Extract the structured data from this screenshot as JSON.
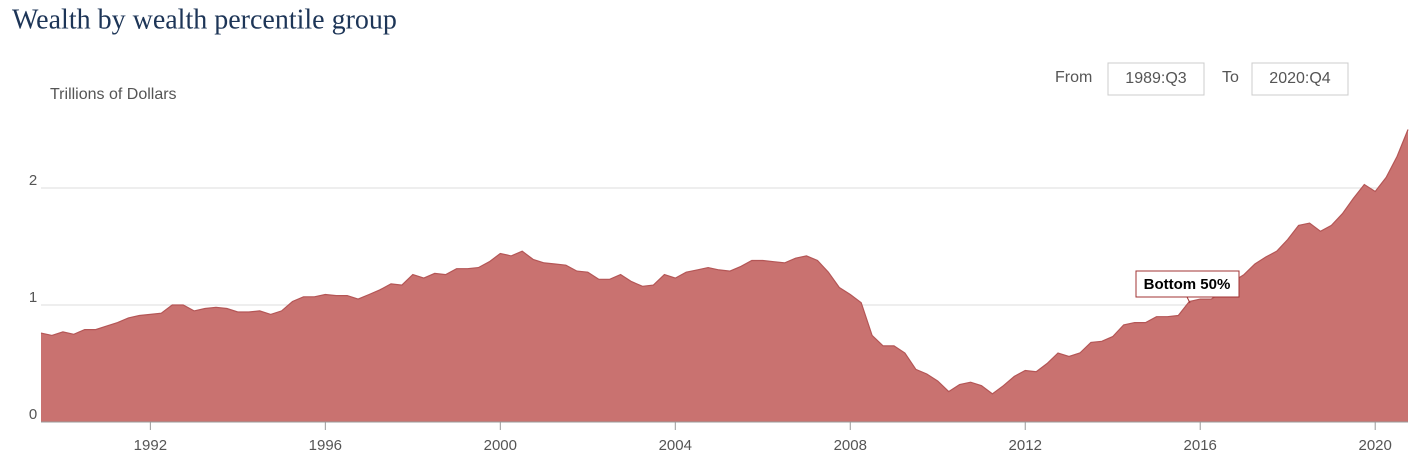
{
  "chart_data": {
    "type": "area",
    "title": "Wealth by wealth percentile group",
    "y_axis_label": "Trillions of Dollars",
    "x": [
      1989.5,
      1989.75,
      1990,
      1990.25,
      1990.5,
      1990.75,
      1991,
      1991.25,
      1991.5,
      1991.75,
      1992,
      1992.25,
      1992.5,
      1992.75,
      1993,
      1993.25,
      1993.5,
      1993.75,
      1994,
      1994.25,
      1994.5,
      1994.75,
      1995,
      1995.25,
      1995.5,
      1995.75,
      1996,
      1996.25,
      1996.5,
      1996.75,
      1997,
      1997.25,
      1997.5,
      1997.75,
      1998,
      1998.25,
      1998.5,
      1998.75,
      1999,
      1999.25,
      1999.5,
      1999.75,
      2000,
      2000.25,
      2000.5,
      2000.75,
      2001,
      2001.25,
      2001.5,
      2001.75,
      2002,
      2002.25,
      2002.5,
      2002.75,
      2003,
      2003.25,
      2003.5,
      2003.75,
      2004,
      2004.25,
      2004.5,
      2004.75,
      2005,
      2005.25,
      2005.5,
      2005.75,
      2006,
      2006.25,
      2006.5,
      2006.75,
      2007,
      2007.25,
      2007.5,
      2007.75,
      2008,
      2008.25,
      2008.5,
      2008.75,
      2009,
      2009.25,
      2009.5,
      2009.75,
      2010,
      2010.25,
      2010.5,
      2010.75,
      2011,
      2011.25,
      2011.5,
      2011.75,
      2012,
      2012.25,
      2012.5,
      2012.75,
      2013,
      2013.25,
      2013.5,
      2013.75,
      2014,
      2014.25,
      2014.5,
      2014.75,
      2015,
      2015.25,
      2015.5,
      2015.75,
      2016,
      2016.25,
      2016.5,
      2016.75,
      2017,
      2017.25,
      2017.5,
      2017.75,
      2018,
      2018.25,
      2018.5,
      2018.75,
      2019,
      2019.25,
      2019.5,
      2019.75,
      2020,
      2020.25,
      2020.5,
      2020.75
    ],
    "series": [
      {
        "name": "Bottom 50%",
        "color": "#c97270",
        "line_color": "#b45656",
        "values": [
          0.76,
          0.74,
          0.77,
          0.75,
          0.79,
          0.79,
          0.82,
          0.85,
          0.89,
          0.91,
          0.92,
          0.93,
          1.0,
          1.0,
          0.95,
          0.97,
          0.98,
          0.97,
          0.94,
          0.94,
          0.95,
          0.92,
          0.95,
          1.03,
          1.07,
          1.07,
          1.09,
          1.08,
          1.08,
          1.05,
          1.09,
          1.13,
          1.18,
          1.17,
          1.26,
          1.23,
          1.27,
          1.26,
          1.31,
          1.31,
          1.32,
          1.37,
          1.44,
          1.42,
          1.46,
          1.39,
          1.36,
          1.35,
          1.34,
          1.29,
          1.28,
          1.22,
          1.22,
          1.26,
          1.2,
          1.16,
          1.17,
          1.26,
          1.23,
          1.28,
          1.3,
          1.32,
          1.3,
          1.29,
          1.33,
          1.38,
          1.38,
          1.37,
          1.36,
          1.4,
          1.42,
          1.38,
          1.28,
          1.15,
          1.09,
          1.02,
          0.74,
          0.65,
          0.65,
          0.59,
          0.45,
          0.41,
          0.35,
          0.26,
          0.32,
          0.34,
          0.31,
          0.24,
          0.31,
          0.39,
          0.44,
          0.43,
          0.5,
          0.59,
          0.56,
          0.59,
          0.68,
          0.69,
          0.73,
          0.83,
          0.85,
          0.85,
          0.9,
          0.9,
          0.91,
          1.03,
          1.05,
          1.05,
          1.11,
          1.2,
          1.26,
          1.35,
          1.41,
          1.46,
          1.56,
          1.68,
          1.7,
          1.63,
          1.68,
          1.78,
          1.91,
          2.03,
          1.97,
          2.09,
          2.27,
          2.5
        ]
      }
    ],
    "xlim": [
      1989.5,
      2020.75
    ],
    "xticks": [
      1992,
      1996,
      2000,
      2004,
      2008,
      2012,
      2016,
      2020
    ],
    "ylim": [
      0,
      2.5
    ],
    "yticks": [
      0,
      1,
      2
    ],
    "grid": true
  },
  "controls": {
    "from_label": "From",
    "from": "1989:Q3",
    "to_label": "To",
    "to": "2020:Q4"
  }
}
